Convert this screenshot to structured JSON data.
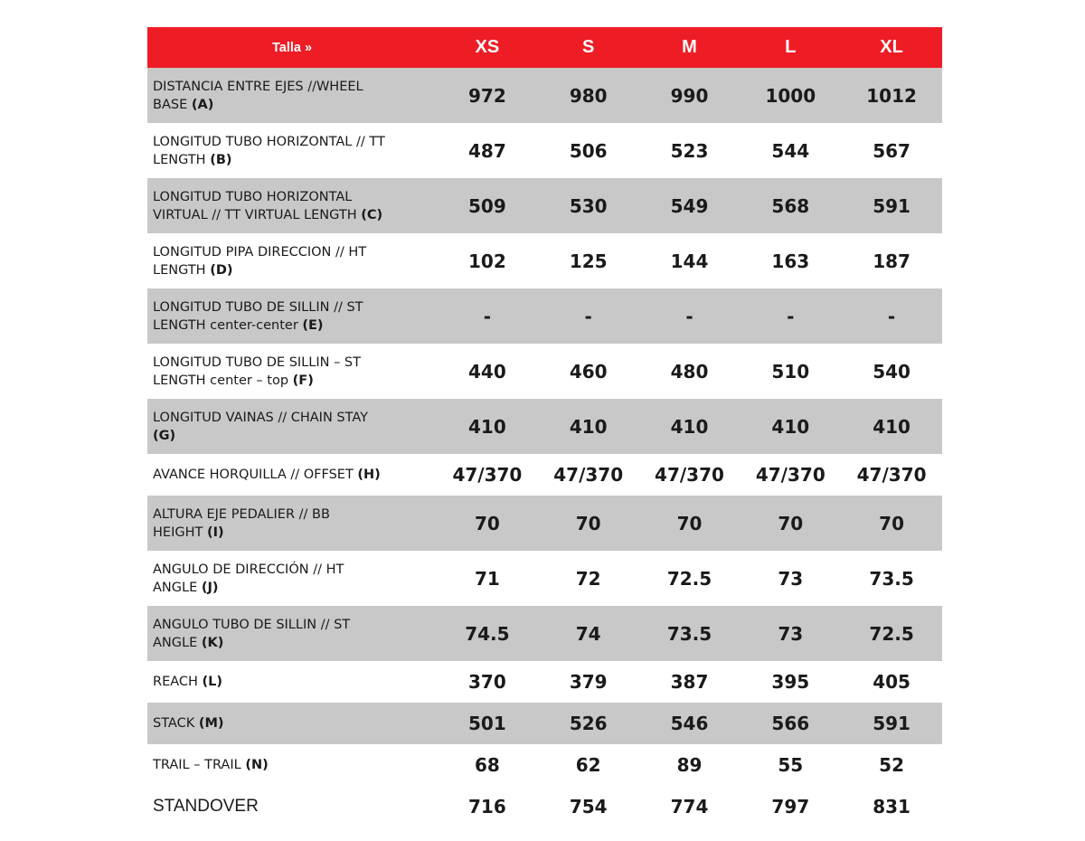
{
  "header": {
    "label": "Talla »",
    "sizes": [
      "XS",
      "S",
      "M",
      "L",
      "XL"
    ]
  },
  "rows": [
    {
      "label": "DISTANCIA ENTRE EJES //WHEEL",
      "label2": "BASE ",
      "code": "(A)",
      "values": [
        "972",
        "980",
        "990",
        "1000",
        "1012"
      ]
    },
    {
      "label": "LONGITUD TUBO HORIZONTAL // TT",
      "label2": "LENGTH ",
      "code": "(B)",
      "values": [
        "487",
        "506",
        "523",
        "544",
        "567"
      ]
    },
    {
      "label": "LONGITUD TUBO HORIZONTAL",
      "label2": "VIRTUAL // TT VIRTUAL LENGTH ",
      "code": "(C)",
      "values": [
        "509",
        "530",
        "549",
        "568",
        "591"
      ]
    },
    {
      "label": "LONGITUD PIPA DIRECCION // HT",
      "label2": "LENGTH ",
      "code": "(D)",
      "values": [
        "102",
        "125",
        "144",
        "163",
        "187"
      ]
    },
    {
      "label": "LONGITUD TUBO DE SILLIN // ST",
      "label2": "LENGTH center-center ",
      "code": "(E)",
      "values": [
        "-",
        "-",
        "-",
        "-",
        "-"
      ]
    },
    {
      "label": "LONGITUD TUBO DE SILLIN – ST",
      "label2": "LENGTH center – top  ",
      "code": "(F)",
      "values": [
        "440",
        "460",
        "480",
        "510",
        "540"
      ]
    },
    {
      "label": "LONGITUD VAINAS // CHAIN STAY",
      "label2": "",
      "code": "(G)",
      "values": [
        "410",
        "410",
        "410",
        "410",
        "410"
      ]
    },
    {
      "label": "AVANCE HORQUILLA // OFFSET ",
      "label2": "",
      "code": "(H)",
      "values": [
        "47/370",
        "47/370",
        "47/370",
        "47/370",
        "47/370"
      ]
    },
    {
      "label": "ALTURA EJE PEDALIER  // BB",
      "label2": "HEIGHT  ",
      "code": "(I)",
      "values": [
        "70",
        "70",
        "70",
        "70",
        "70"
      ]
    },
    {
      "label": "ANGULO DE DIRECCIÓN // HT",
      "label2": "ANGLE ",
      "code": "(J)",
      "values": [
        "71",
        "72",
        "72.5",
        "73",
        "73.5"
      ]
    },
    {
      "label": "ANGULO TUBO DE SILLIN // ST",
      "label2": "ANGLE ",
      "code": "(K)",
      "values": [
        "74.5",
        "74",
        "73.5",
        "73",
        "72.5"
      ]
    },
    {
      "label": "REACH  ",
      "label2": "",
      "code": "(L)",
      "values": [
        "370",
        "379",
        "387",
        "395",
        "405"
      ]
    },
    {
      "label": "STACK ",
      "label2": "",
      "code": "(M)",
      "values": [
        "501",
        "526",
        "546",
        "566",
        "591"
      ]
    },
    {
      "label": "TRAIL – TRAIL  ",
      "label2": "",
      "code": "(N)",
      "values": [
        "68",
        "62",
        "89",
        "55",
        "52"
      ]
    },
    {
      "label": "STANDOVER",
      "label2": "",
      "code": "",
      "values": [
        "716",
        "754",
        "774",
        "797",
        "831"
      ]
    }
  ]
}
